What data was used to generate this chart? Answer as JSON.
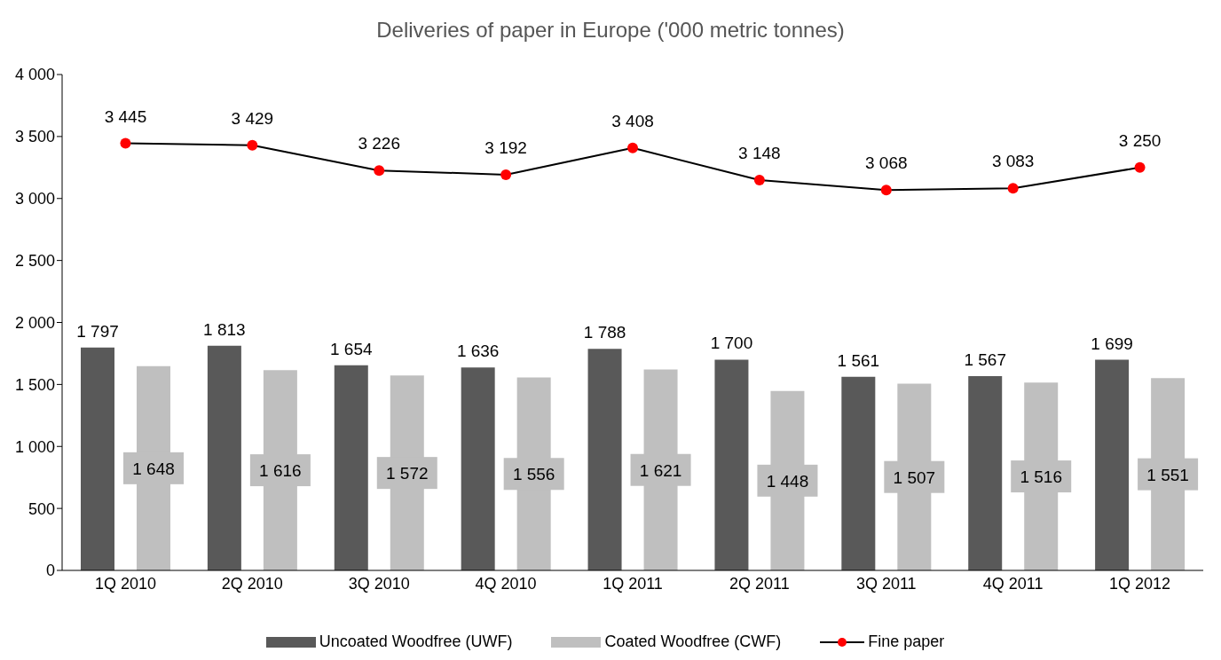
{
  "chart_data": {
    "type": "bar",
    "title": "Deliveries of paper in Europe ('000 metric tonnes)",
    "categories": [
      "1Q 2010",
      "2Q 2010",
      "3Q 2010",
      "4Q 2010",
      "1Q 2011",
      "2Q 2011",
      "3Q 2011",
      "4Q 2011",
      "1Q 2012"
    ],
    "series": [
      {
        "name": "Uncoated Woodfree (UWF)",
        "color": "#595959",
        "values": [
          1797,
          1813,
          1654,
          1636,
          1788,
          1700,
          1561,
          1567,
          1699
        ],
        "value_labels": [
          "1 797",
          "1 813",
          "1 654",
          "1 636",
          "1 788",
          "1 700",
          "1 561",
          "1 567",
          "1 699"
        ]
      },
      {
        "name": "Coated Woodfree (CWF)",
        "color": "#bfbfbf",
        "values": [
          1648,
          1616,
          1572,
          1556,
          1621,
          1448,
          1507,
          1516,
          1551
        ],
        "value_labels": [
          "1 648",
          "1 616",
          "1 572",
          "1 556",
          "1 621",
          "1 448",
          "1 507",
          "1 516",
          "1 551"
        ]
      },
      {
        "name": "Fine paper",
        "type": "line",
        "color": "#000000",
        "colors": [
          "#ff0000",
          "#ff0000",
          "#ff0000",
          "#ff0000",
          "#ff0000",
          "#ff0000",
          "#ff0000",
          "#ff0000",
          "#ff0000"
        ],
        "values": [
          3445,
          3429,
          3226,
          3192,
          3408,
          3148,
          3068,
          3083,
          3250
        ],
        "value_labels": [
          "3 445",
          "3 429",
          "3 226",
          "3 192",
          "3 408",
          "3 148",
          "3 068",
          "3 083",
          "3 250"
        ]
      }
    ],
    "ylim": [
      0,
      4000
    ],
    "yticks": [
      0,
      500,
      {
        "value": 1000,
        "label": "1 000"
      },
      {
        "value": 1500,
        "label": "1 500"
      },
      {
        "value": 2000,
        "label": "2 000"
      },
      {
        "value": 2500,
        "label": "2 500"
      },
      {
        "value": 3000,
        "label": "3 000"
      },
      {
        "value": 3500,
        "label": "3 500"
      },
      {
        "value": 4000,
        "label": "4 000"
      }
    ],
    "grid": false,
    "legend": "bottom",
    "marker": "circle"
  }
}
